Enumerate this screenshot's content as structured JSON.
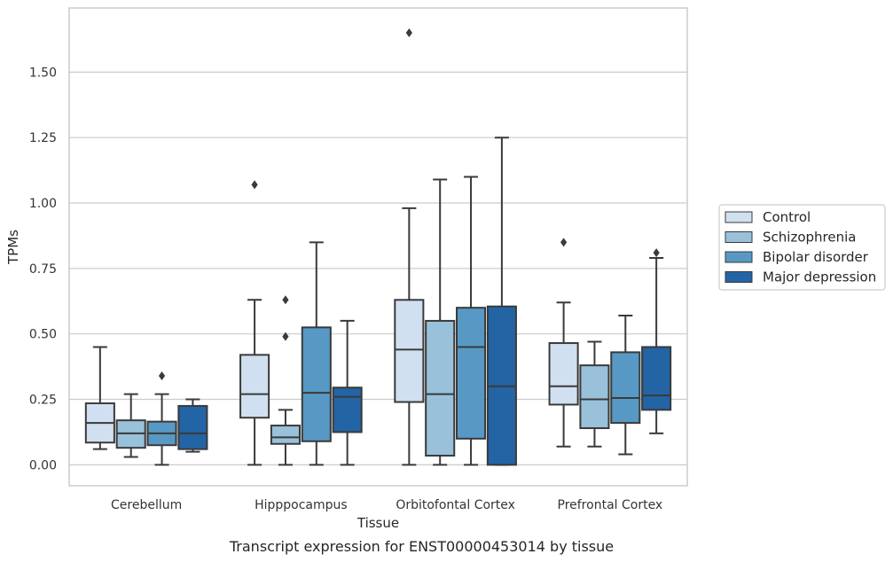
{
  "chart_data": {
    "type": "box",
    "caption": "Transcript expression for ENST00000453014 by tissue",
    "xlabel": "Tissue",
    "ylabel": "TPMs",
    "ylim": [
      -0.08,
      1.745
    ],
    "yticks": [
      0.0,
      0.25,
      0.5,
      0.75,
      1.0,
      1.25,
      1.5
    ],
    "ytick_labels": [
      "0.00",
      "0.25",
      "0.50",
      "0.75",
      "1.00",
      "1.25",
      "1.50"
    ],
    "grid": "horizontal",
    "legend_position": "right",
    "categories": [
      "Cerebellum",
      "Hipppocampus",
      "Orbitofontal Cortex",
      "Prefrontal Cortex"
    ],
    "series": [
      {
        "name": "Control",
        "color": "#d1e0f0",
        "boxes": [
          {
            "whisker_low": 0.06,
            "q1": 0.085,
            "median": 0.16,
            "q3": 0.235,
            "whisker_high": 0.45,
            "outliers": []
          },
          {
            "whisker_low": 0.0,
            "q1": 0.18,
            "median": 0.27,
            "q3": 0.42,
            "whisker_high": 0.63,
            "outliers": [
              1.07
            ]
          },
          {
            "whisker_low": 0.0,
            "q1": 0.24,
            "median": 0.44,
            "q3": 0.63,
            "whisker_high": 0.98,
            "outliers": [
              1.65
            ]
          },
          {
            "whisker_low": 0.07,
            "q1": 0.23,
            "median": 0.3,
            "q3": 0.465,
            "whisker_high": 0.62,
            "outliers": [
              0.85
            ]
          }
        ]
      },
      {
        "name": "Schizophrenia",
        "color": "#99c1da",
        "boxes": [
          {
            "whisker_low": 0.03,
            "q1": 0.065,
            "median": 0.12,
            "q3": 0.17,
            "whisker_high": 0.27,
            "outliers": []
          },
          {
            "whisker_low": 0.0,
            "q1": 0.08,
            "median": 0.105,
            "q3": 0.15,
            "whisker_high": 0.21,
            "outliers": [
              0.49,
              0.63
            ]
          },
          {
            "whisker_low": 0.0,
            "q1": 0.035,
            "median": 0.27,
            "q3": 0.55,
            "whisker_high": 1.09,
            "outliers": []
          },
          {
            "whisker_low": 0.07,
            "q1": 0.14,
            "median": 0.25,
            "q3": 0.38,
            "whisker_high": 0.47,
            "outliers": []
          }
        ]
      },
      {
        "name": "Bipolar disorder",
        "color": "#5799c4",
        "boxes": [
          {
            "whisker_low": 0.0,
            "q1": 0.075,
            "median": 0.12,
            "q3": 0.165,
            "whisker_high": 0.27,
            "outliers": [
              0.34
            ]
          },
          {
            "whisker_low": 0.0,
            "q1": 0.09,
            "median": 0.275,
            "q3": 0.525,
            "whisker_high": 0.85,
            "outliers": []
          },
          {
            "whisker_low": 0.0,
            "q1": 0.1,
            "median": 0.45,
            "q3": 0.6,
            "whisker_high": 1.1,
            "outliers": []
          },
          {
            "whisker_low": 0.04,
            "q1": 0.16,
            "median": 0.255,
            "q3": 0.43,
            "whisker_high": 0.57,
            "outliers": []
          }
        ]
      },
      {
        "name": "Major depression",
        "color": "#2364a5",
        "boxes": [
          {
            "whisker_low": 0.05,
            "q1": 0.06,
            "median": 0.12,
            "q3": 0.225,
            "whisker_high": 0.25,
            "outliers": []
          },
          {
            "whisker_low": 0.0,
            "q1": 0.125,
            "median": 0.26,
            "q3": 0.295,
            "whisker_high": 0.55,
            "outliers": []
          },
          {
            "whisker_low": 0.0,
            "q1": 0.0,
            "median": 0.3,
            "q3": 0.605,
            "whisker_high": 1.25,
            "outliers": []
          },
          {
            "whisker_low": 0.12,
            "q1": 0.21,
            "median": 0.265,
            "q3": 0.45,
            "whisker_high": 0.79,
            "outliers": [
              0.81
            ]
          }
        ]
      }
    ]
  }
}
